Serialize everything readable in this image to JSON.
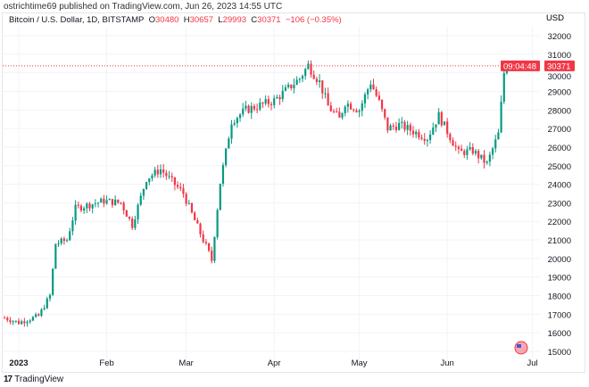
{
  "header": {
    "published": "ostrichtime69 published on TradingView.com, Jun 26, 2023 14:55 UTC"
  },
  "legend": {
    "symbol": "Bitcoin / U.S. Dollar, 1D, BITSTAMP",
    "o_label": "O",
    "o": "30480",
    "h_label": "H",
    "h": "30657",
    "l_label": "L",
    "l": "29993",
    "c_label": "C",
    "c": "30371",
    "change": "−106 (−0.35%)"
  },
  "footer": {
    "brand": "TradingView",
    "logo_text": "17"
  },
  "colors": {
    "up": "#089981",
    "down": "#f23645",
    "grid": "#f0f3fa"
  },
  "chart_data": {
    "type": "candlestick",
    "title": "Bitcoin / U.S. Dollar, 1D, BITSTAMP",
    "currency_label": "USD",
    "ylim": [
      15000,
      32000
    ],
    "yticks": [
      15000,
      16000,
      17000,
      18000,
      19000,
      20000,
      21000,
      22000,
      23000,
      24000,
      25000,
      26000,
      27000,
      28000,
      29000,
      30000,
      31000,
      32000
    ],
    "xticks": [
      {
        "label": "2023",
        "day": 0
      },
      {
        "label": "Feb",
        "day": 31
      },
      {
        "label": "Mar",
        "day": 59
      },
      {
        "label": "Apr",
        "day": 90
      },
      {
        "label": "May",
        "day": 120
      },
      {
        "label": "Jun",
        "day": 151
      },
      {
        "label": "Jul",
        "day": 181
      }
    ],
    "last_price": {
      "value": "30371",
      "countdown": "09:04:48"
    },
    "close_keypoints_day_price": [
      [
        -5,
        16800
      ],
      [
        0,
        16550
      ],
      [
        7,
        16900
      ],
      [
        11,
        18000
      ],
      [
        13,
        20800
      ],
      [
        17,
        21000
      ],
      [
        20,
        22700
      ],
      [
        30,
        23100
      ],
      [
        36,
        23000
      ],
      [
        40,
        21800
      ],
      [
        45,
        24300
      ],
      [
        50,
        24800
      ],
      [
        58,
        23500
      ],
      [
        61,
        22400
      ],
      [
        67,
        20300
      ],
      [
        68,
        19900
      ],
      [
        71,
        24100
      ],
      [
        75,
        27400
      ],
      [
        80,
        28000
      ],
      [
        90,
        28500
      ],
      [
        99,
        29700
      ],
      [
        102,
        30400
      ],
      [
        106,
        29500
      ],
      [
        109,
        28200
      ],
      [
        113,
        27500
      ],
      [
        115,
        28400
      ],
      [
        120,
        28000
      ],
      [
        124,
        29500
      ],
      [
        127,
        28400
      ],
      [
        130,
        27000
      ],
      [
        134,
        27200
      ],
      [
        144,
        26500
      ],
      [
        148,
        27700
      ],
      [
        155,
        25700
      ],
      [
        160,
        25800
      ],
      [
        165,
        25100
      ],
      [
        169,
        26700
      ],
      [
        170,
        28300
      ],
      [
        171,
        30000
      ],
      [
        173,
        30700
      ],
      [
        176,
        30371
      ]
    ]
  }
}
